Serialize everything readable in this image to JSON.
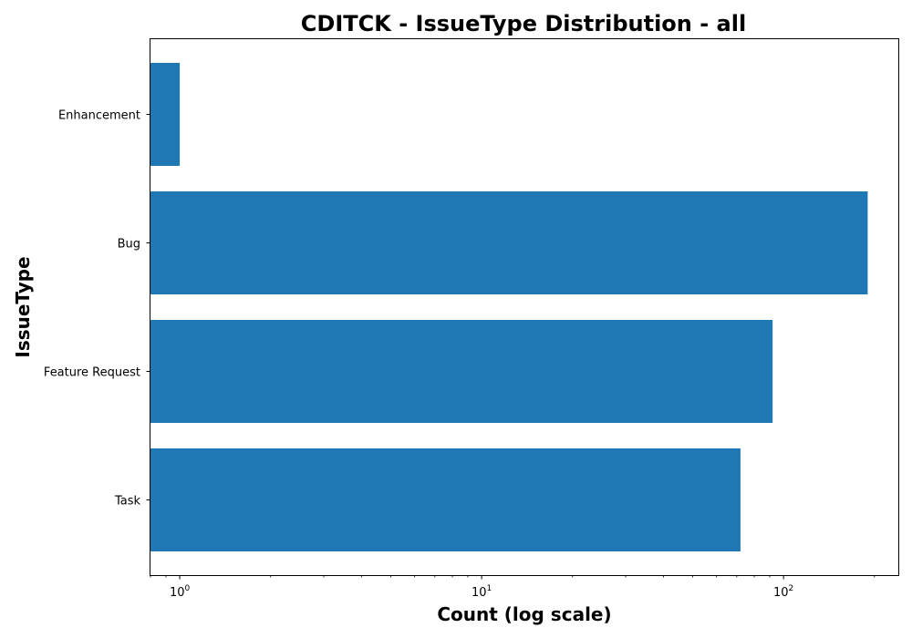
{
  "chart_data": {
    "type": "bar",
    "orientation": "horizontal",
    "title": "CDITCK - IssueType Distribution - all",
    "xlabel": "Count (log scale)",
    "ylabel": "IssueType",
    "x_scale": "log",
    "xlim": [
      0.8,
      240
    ],
    "categories": [
      "Enhancement",
      "Bug",
      "Feature Request",
      "Task"
    ],
    "values": [
      1,
      190,
      92,
      72
    ],
    "x_tick_labels": [
      {
        "value": 1,
        "base": "10",
        "exp": "0"
      },
      {
        "value": 10,
        "base": "10",
        "exp": "1"
      },
      {
        "value": 100,
        "base": "10",
        "exp": "2"
      }
    ],
    "bar_color": "#1f77b4",
    "grid": false,
    "legend": "none"
  }
}
